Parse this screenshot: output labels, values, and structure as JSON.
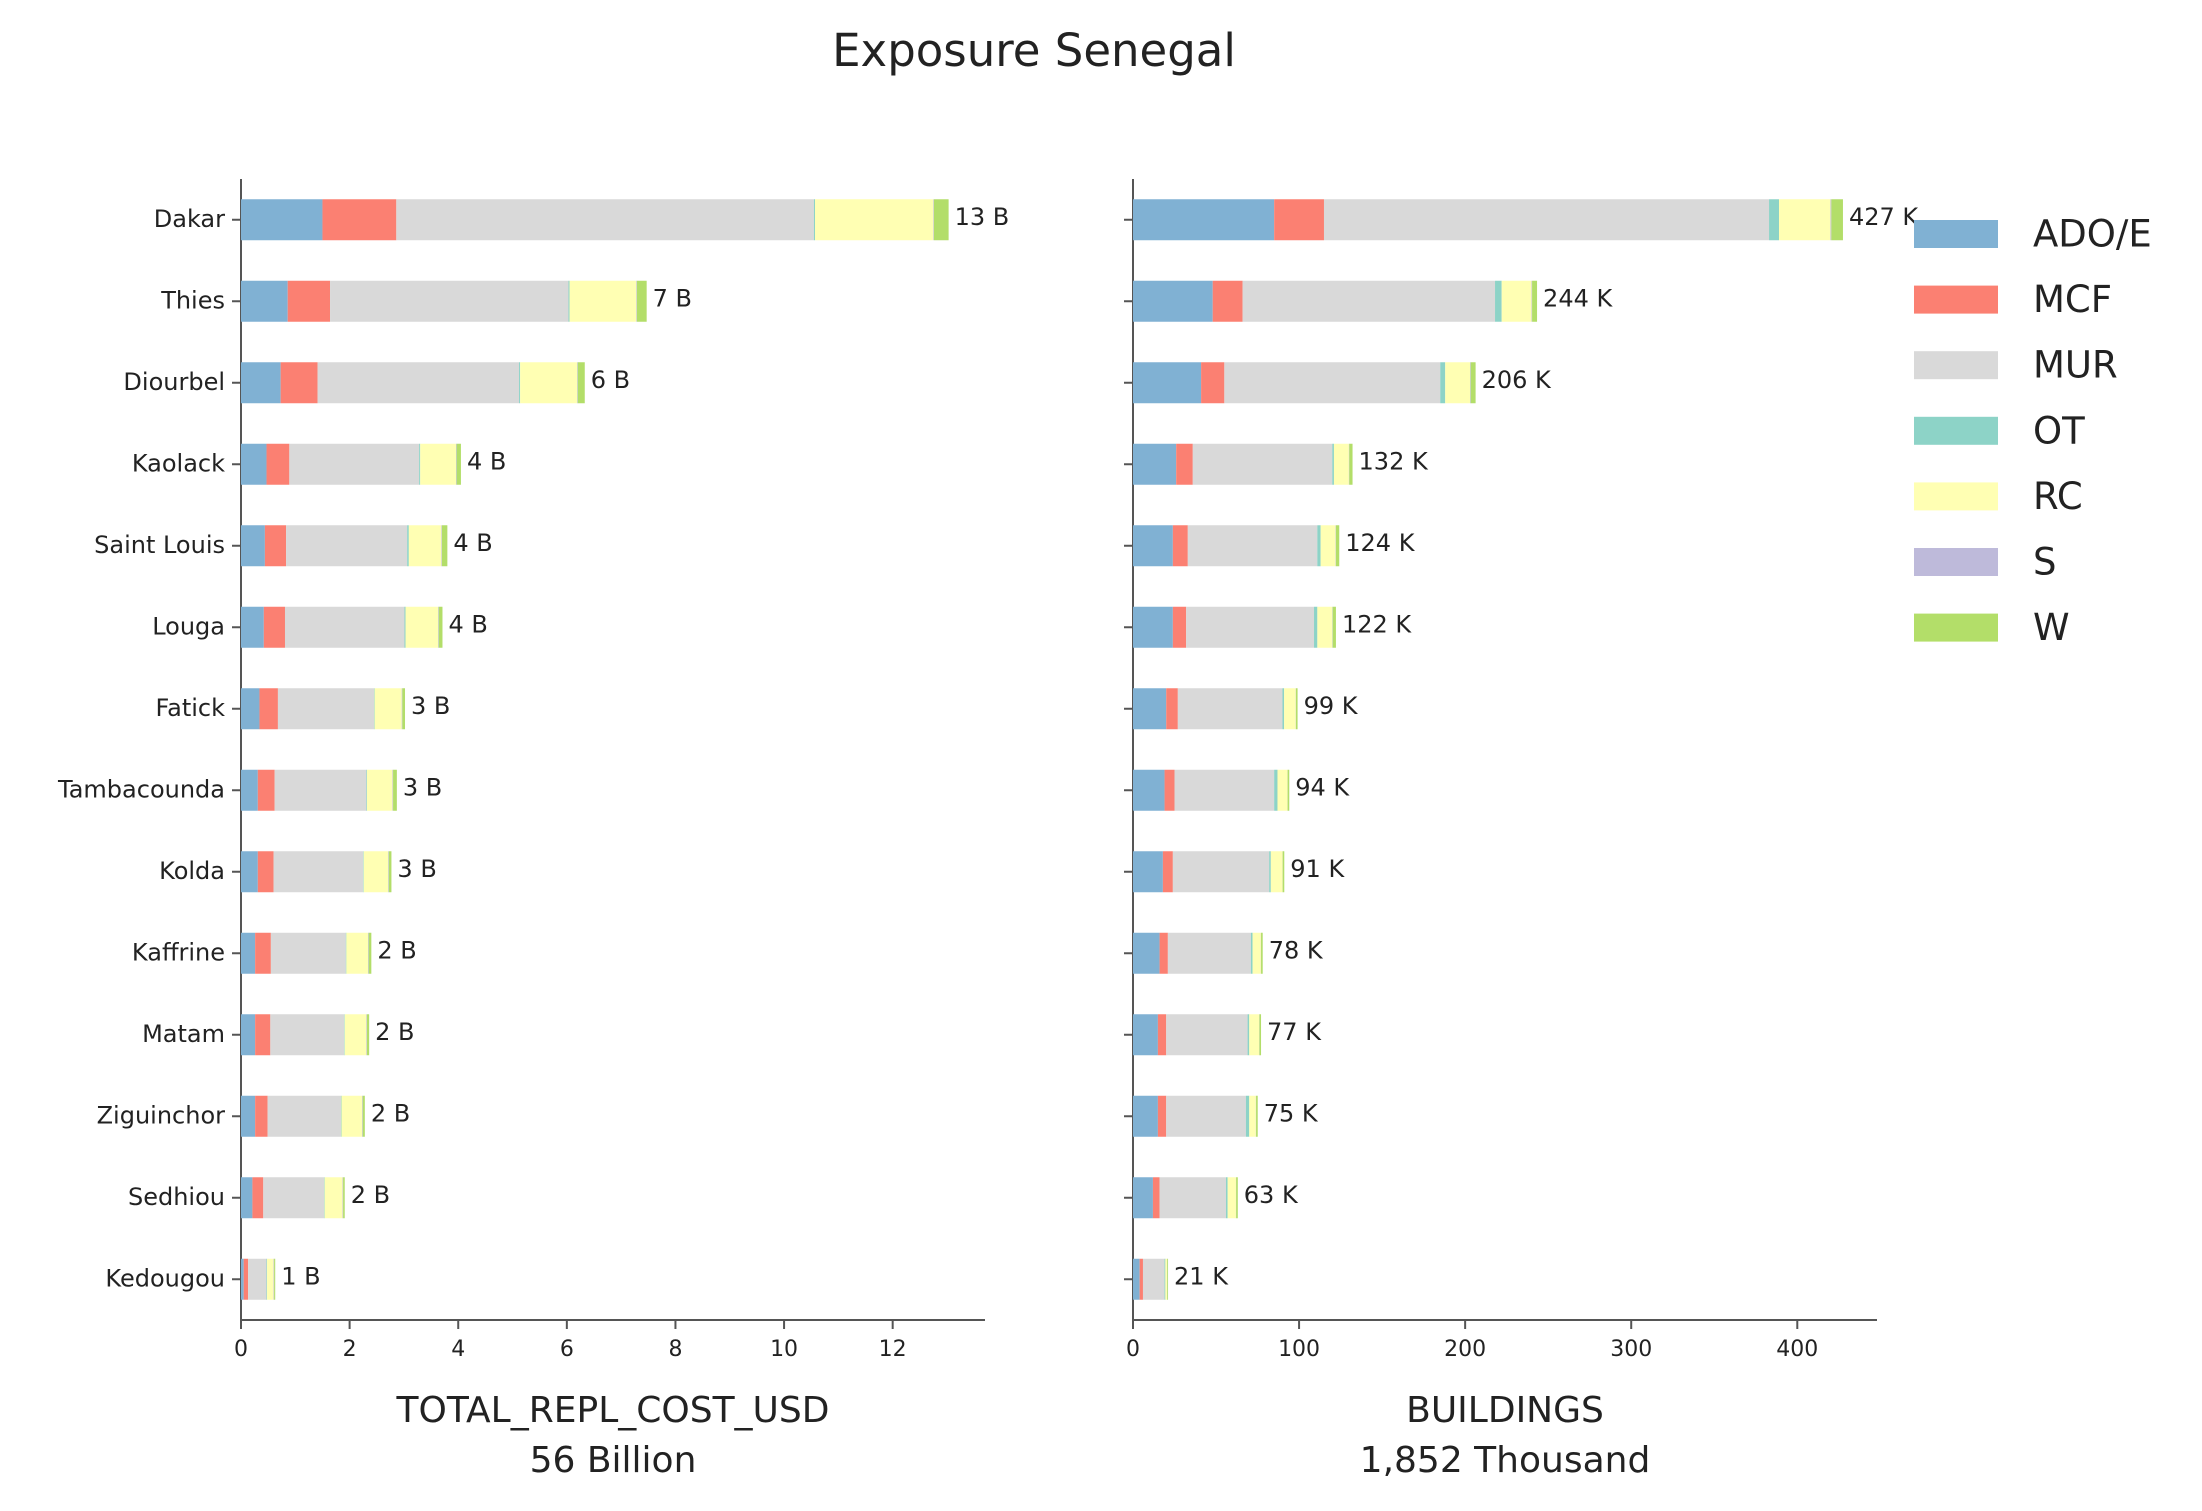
{
  "title": "Exposure Senegal",
  "legend": "upper right outside",
  "chart_data": [
    {
      "type": "bar",
      "orientation": "horizontal",
      "xlabel": [
        "TOTAL_REPL_COST_USD",
        "56 Billion"
      ],
      "categories": [
        "Dakar",
        "Thies",
        "Diourbel",
        "Kaolack",
        "Saint Louis",
        "Louga",
        "Fatick",
        "Tambacounda",
        "Kolda",
        "Kaffrine",
        "Matam",
        "Ziguinchor",
        "Sedhiou",
        "Kedougou"
      ],
      "series": [
        {
          "name": "ADO/E",
          "color": "#80b1d3",
          "values": [
            1.5,
            0.86,
            0.73,
            0.47,
            0.44,
            0.42,
            0.34,
            0.31,
            0.31,
            0.26,
            0.26,
            0.26,
            0.21,
            0.05
          ]
        },
        {
          "name": "MCF",
          "color": "#fb8072",
          "values": [
            1.36,
            0.78,
            0.68,
            0.42,
            0.39,
            0.39,
            0.34,
            0.31,
            0.29,
            0.29,
            0.28,
            0.23,
            0.2,
            0.08
          ]
        },
        {
          "name": "MUR",
          "color": "#d9d9d9",
          "values": [
            7.69,
            4.39,
            3.71,
            2.39,
            2.23,
            2.2,
            1.77,
            1.69,
            1.65,
            1.38,
            1.36,
            1.35,
            1.12,
            0.34
          ]
        },
        {
          "name": "OT",
          "color": "#8dd3c7",
          "values": [
            0.02,
            0.02,
            0.02,
            0.02,
            0.03,
            0.02,
            0.01,
            0.01,
            0.01,
            0.01,
            0.01,
            0.01,
            0.01,
            0.01
          ]
        },
        {
          "name": "RC",
          "color": "#ffffb3",
          "values": [
            2.18,
            1.23,
            1.05,
            0.66,
            0.6,
            0.6,
            0.5,
            0.47,
            0.45,
            0.4,
            0.4,
            0.38,
            0.33,
            0.12
          ]
        },
        {
          "name": "S",
          "color": "#bebada",
          "values": [
            0.01,
            0.01,
            0.01,
            0.01,
            0.01,
            0.01,
            0.01,
            0.01,
            0.01,
            0.01,
            0.01,
            0.01,
            0.01,
            0.01
          ]
        },
        {
          "name": "W",
          "color": "#b3de69",
          "values": [
            0.27,
            0.18,
            0.13,
            0.08,
            0.1,
            0.07,
            0.05,
            0.07,
            0.05,
            0.05,
            0.04,
            0.04,
            0.03,
            0.02
          ]
        }
      ],
      "total_labels": [
        "13 B",
        "7 B",
        "6 B",
        "4 B",
        "4 B",
        "4 B",
        "3 B",
        "3 B",
        "3 B",
        "2 B",
        "2 B",
        "2 B",
        "2 B",
        "1 B"
      ],
      "xlim": [
        0,
        13.7
      ],
      "xticks": [
        0,
        2,
        4,
        6,
        8,
        10,
        12
      ]
    },
    {
      "type": "bar",
      "orientation": "horizontal",
      "xlabel": [
        "BUILDINGS",
        "1,852 Thousand"
      ],
      "categories": [
        null,
        null,
        null,
        null,
        null,
        null,
        null,
        null,
        null,
        null,
        null,
        null,
        null,
        null
      ],
      "series": [
        {
          "name": "ADO/E",
          "color": "#80b1d3",
          "values": [
            85,
            48,
            41,
            26,
            24,
            24,
            20,
            19,
            18,
            16,
            15,
            15,
            12,
            4
          ]
        },
        {
          "name": "MCF",
          "color": "#fb8072",
          "values": [
            30,
            18,
            14,
            10,
            9,
            8,
            7,
            6,
            6,
            5,
            5,
            5,
            4,
            2
          ]
        },
        {
          "name": "MUR",
          "color": "#d9d9d9",
          "values": [
            268,
            152,
            130,
            84,
            78,
            77,
            63,
            60,
            58,
            50,
            49,
            48,
            40,
            13
          ]
        },
        {
          "name": "OT",
          "color": "#8dd3c7",
          "values": [
            6,
            4,
            3,
            1,
            2,
            2,
            1,
            2,
            1,
            1,
            1,
            2,
            1,
            0.5
          ]
        },
        {
          "name": "RC",
          "color": "#ffffb3",
          "values": [
            31,
            18,
            15,
            9,
            9,
            9,
            7,
            6,
            7,
            5,
            6,
            4,
            5,
            1
          ]
        },
        {
          "name": "S",
          "color": "#bebada",
          "values": [
            0.5,
            0.3,
            0.3,
            0.2,
            0.2,
            0.2,
            0.1,
            0.1,
            0.1,
            0.1,
            0.1,
            0.1,
            0.1,
            0.1
          ]
        },
        {
          "name": "W",
          "color": "#b3de69",
          "values": [
            7,
            3,
            3,
            2,
            2,
            2,
            1,
            1,
            1,
            1,
            1,
            1,
            1,
            0.5
          ]
        }
      ],
      "total_labels": [
        "427 K",
        "244 K",
        "206 K",
        "132 K",
        "124 K",
        "122 K",
        "99 K",
        "94 K",
        "91 K",
        "78 K",
        "77 K",
        "75 K",
        "63 K",
        "21 K"
      ],
      "xlim": [
        0,
        448
      ],
      "xticks": [
        0,
        100,
        200,
        300,
        400
      ]
    }
  ]
}
